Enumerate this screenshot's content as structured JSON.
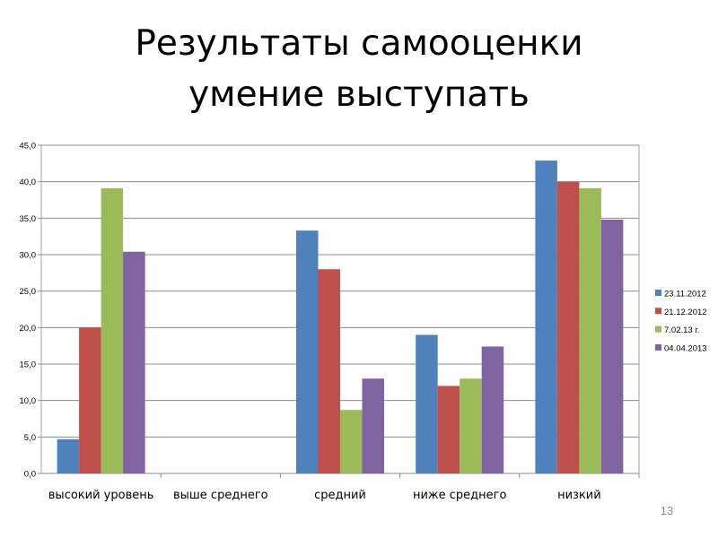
{
  "slide": {
    "title_line1": "Результаты самооценки",
    "title_line2": "умение выступать",
    "page_number": "13"
  },
  "chart_data": {
    "type": "bar",
    "title": "",
    "xlabel": "",
    "ylabel": "",
    "categories": [
      "высокий уровень",
      "выше среднего",
      "средний",
      "ниже среднего",
      "низкий"
    ],
    "series": [
      {
        "name": "23.11.2012",
        "color": "#4f81bd",
        "values": [
          4.7,
          0,
          33.3,
          19.0,
          42.9
        ]
      },
      {
        "name": "21.12.2012",
        "color": "#c0504d",
        "values": [
          20.0,
          0,
          28.0,
          12.0,
          40.0
        ]
      },
      {
        "name": "7.02.13 г.",
        "color": "#9bbb59",
        "values": [
          39.1,
          0,
          8.7,
          13.0,
          39.1
        ]
      },
      {
        "name": "04.04.2013",
        "color": "#8064a2",
        "values": [
          30.4,
          0,
          13.0,
          17.4,
          34.8
        ]
      }
    ],
    "ylim": [
      0,
      45
    ],
    "yticks": [
      "0,0",
      "5,0",
      "10,0",
      "15,0",
      "20,0",
      "25,0",
      "30,0",
      "35,0",
      "40,0",
      "45,0"
    ],
    "grid": true,
    "legend_position": "right"
  }
}
